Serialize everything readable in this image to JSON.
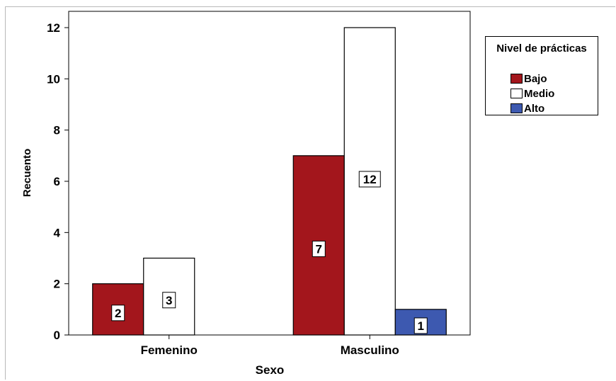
{
  "chart_data": {
    "type": "bar",
    "categories": [
      "Femenino",
      "Masculino"
    ],
    "series": [
      {
        "name": "Bajo",
        "color": "#a3161c",
        "values": [
          2,
          7
        ]
      },
      {
        "name": "Medio",
        "color": "#ffffff",
        "values": [
          3,
          12
        ]
      },
      {
        "name": "Alto",
        "color": "#3d59b0",
        "values": [
          null,
          1
        ]
      }
    ],
    "xlabel": "Sexo",
    "ylabel": "Recuento",
    "ylim": [
      0,
      12
    ],
    "yticks": [
      0,
      2,
      4,
      6,
      8,
      10,
      12
    ],
    "grid": false,
    "legend": {
      "title": "Nivel de prácticas",
      "placement": "right"
    }
  }
}
